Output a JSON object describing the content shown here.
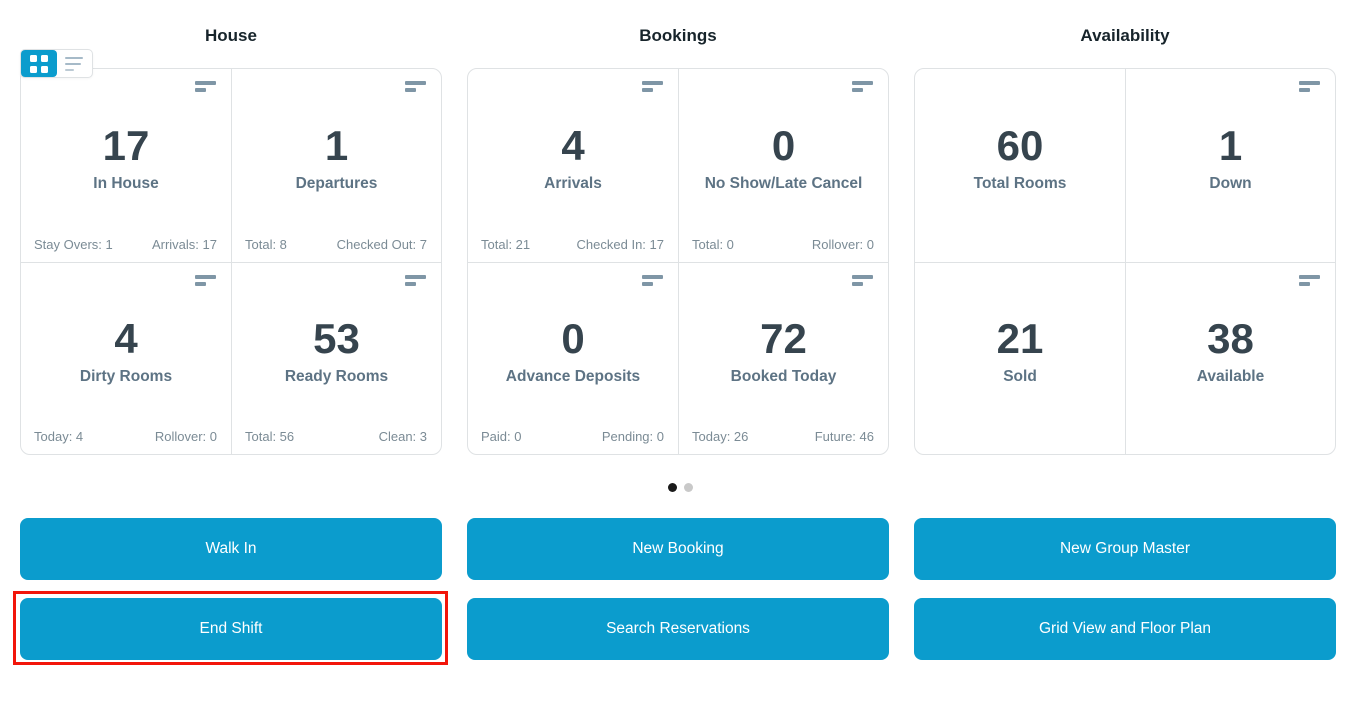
{
  "view_toggle": {
    "grid_button": {
      "icon": "grid-icon",
      "active": true
    },
    "list_button": {
      "icon": "list-icon",
      "active": false
    }
  },
  "sections": [
    {
      "title": "House",
      "cards": [
        {
          "value": "17",
          "label": "In House",
          "icon": "sort-lines-icon",
          "footer_left": "Stay Overs: 1",
          "footer_right": "Arrivals: 17"
        },
        {
          "value": "1",
          "label": "Departures",
          "icon": "sort-lines-icon",
          "footer_left": "Total: 8",
          "footer_right": "Checked Out: 7"
        },
        {
          "value": "4",
          "label": "Dirty Rooms",
          "icon": "sort-lines-icon",
          "footer_left": "Today: 4",
          "footer_right": "Rollover: 0"
        },
        {
          "value": "53",
          "label": "Ready Rooms",
          "icon": "sort-lines-icon",
          "footer_left": "Total: 56",
          "footer_right": "Clean: 3"
        }
      ]
    },
    {
      "title": "Bookings",
      "cards": [
        {
          "value": "4",
          "label": "Arrivals",
          "icon": "sort-lines-icon",
          "footer_left": "Total: 21",
          "footer_right": "Checked In: 17"
        },
        {
          "value": "0",
          "label": "No Show/Late Cancel",
          "icon": "sort-lines-icon",
          "footer_left": "Total: 0",
          "footer_right": "Rollover: 0"
        },
        {
          "value": "0",
          "label": "Advance Deposits",
          "icon": "sort-lines-icon",
          "footer_left": "Paid: 0",
          "footer_right": "Pending: 0"
        },
        {
          "value": "72",
          "label": "Booked Today",
          "icon": "sort-lines-icon",
          "footer_left": "Today: 26",
          "footer_right": "Future: 46"
        }
      ]
    },
    {
      "title": "Availability",
      "cards": [
        {
          "value": "60",
          "label": "Total Rooms",
          "icon": null
        },
        {
          "value": "1",
          "label": "Down",
          "icon": "sort-lines-icon"
        },
        {
          "value": "21",
          "label": "Sold",
          "icon": null
        },
        {
          "value": "38",
          "label": "Available",
          "icon": "sort-lines-icon"
        }
      ]
    }
  ],
  "pagination": {
    "dots": [
      {
        "active": true
      },
      {
        "active": false
      }
    ]
  },
  "action_buttons": {
    "rows": [
      [
        {
          "label": "Walk In"
        },
        {
          "label": "New Booking"
        },
        {
          "label": "New Group Master"
        }
      ],
      [
        {
          "label": "End Shift",
          "highlighted": true
        },
        {
          "label": "Search Reservations"
        },
        {
          "label": "Grid View and Floor Plan"
        }
      ]
    ]
  },
  "colors": {
    "accent_blue": "#0b9ccd",
    "highlight_red": "#f2150a",
    "number_dark": "#36444e",
    "label_slate": "#5d7384",
    "footer_gray": "#7b8b95",
    "border_gray": "#dfe2e4",
    "icon_gray": "#7f96a6",
    "title_dark": "#17242b",
    "dot_active": "#1a1a1a",
    "dot_inactive": "#c9c9c9"
  }
}
